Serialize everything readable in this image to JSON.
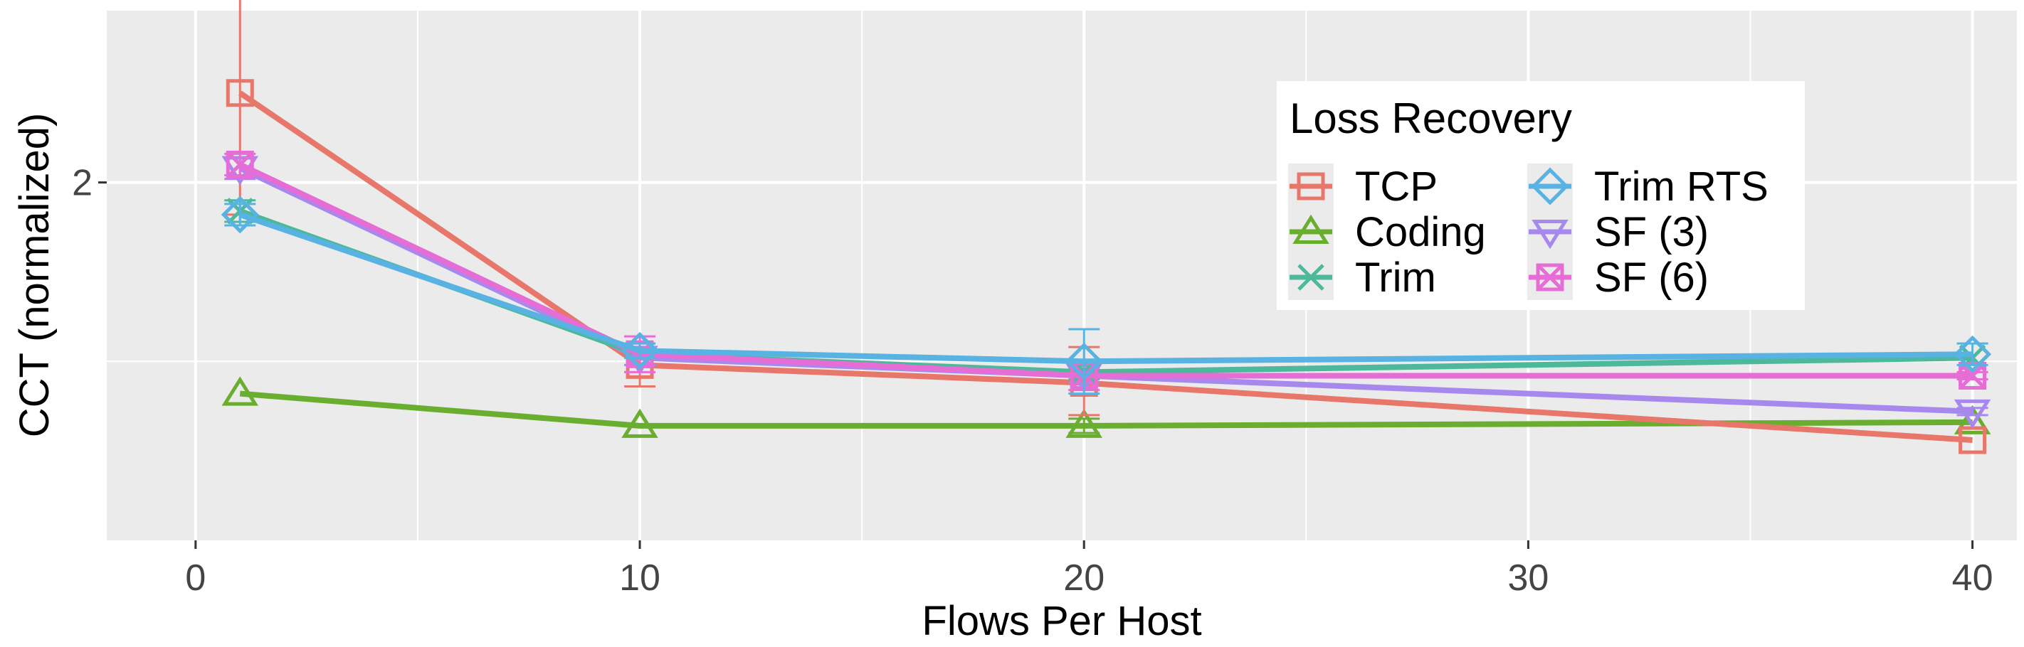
{
  "chart_data": {
    "type": "line",
    "xlabel": "Flows Per Host",
    "ylabel": "CCT (normalized)",
    "xlim": [
      -2,
      41
    ],
    "ylim": [
      1.0,
      2.48
    ],
    "x_ticks": [
      0,
      10,
      20,
      30,
      40
    ],
    "x_tick_labels": [
      "0",
      "10",
      "20",
      "30",
      "40"
    ],
    "y_ticks": [
      2
    ],
    "y_tick_labels": [
      "2"
    ],
    "grid": true,
    "legend": {
      "title": "Loss Recovery",
      "placement": "top-right",
      "columns": 2
    },
    "x": [
      1,
      10,
      20,
      40
    ],
    "series": [
      {
        "name": "TCP",
        "color": "#E8776B",
        "marker": "square",
        "values": [
          2.25,
          1.49,
          1.44,
          1.28
        ],
        "err_low": [
          1.91,
          1.43,
          1.35,
          1.28
        ],
        "err_high": [
          2.58,
          1.55,
          1.54,
          1.28
        ]
      },
      {
        "name": "Coding",
        "color": "#6AAE2F",
        "marker": "triangle-up",
        "values": [
          1.41,
          1.32,
          1.32,
          1.33
        ],
        "err_low": [
          1.41,
          1.32,
          1.3,
          1.33
        ],
        "err_high": [
          1.41,
          1.32,
          1.34,
          1.33
        ]
      },
      {
        "name": "Trim",
        "color": "#4DB89A",
        "marker": "x",
        "values": [
          1.92,
          1.52,
          1.47,
          1.51
        ],
        "err_low": [
          1.89,
          1.51,
          1.45,
          1.51
        ],
        "err_high": [
          1.95,
          1.53,
          1.49,
          1.51
        ]
      },
      {
        "name": "Trim RTS",
        "color": "#58B2E2",
        "marker": "diamond",
        "values": [
          1.91,
          1.53,
          1.5,
          1.52
        ],
        "err_low": [
          1.88,
          1.51,
          1.41,
          1.49
        ],
        "err_high": [
          1.94,
          1.55,
          1.59,
          1.55
        ]
      },
      {
        "name": "SF (3)",
        "color": "#A789EE",
        "marker": "triangle-down",
        "values": [
          2.04,
          1.51,
          1.46,
          1.36
        ],
        "err_low": [
          2.01,
          1.49,
          1.44,
          1.35
        ],
        "err_high": [
          2.07,
          1.53,
          1.48,
          1.37
        ]
      },
      {
        "name": "SF (6)",
        "color": "#E66CD6",
        "marker": "square-x",
        "values": [
          2.05,
          1.52,
          1.46,
          1.46
        ],
        "err_low": [
          2.02,
          1.47,
          1.42,
          1.45
        ],
        "err_high": [
          2.08,
          1.57,
          1.5,
          1.47
        ]
      }
    ]
  }
}
